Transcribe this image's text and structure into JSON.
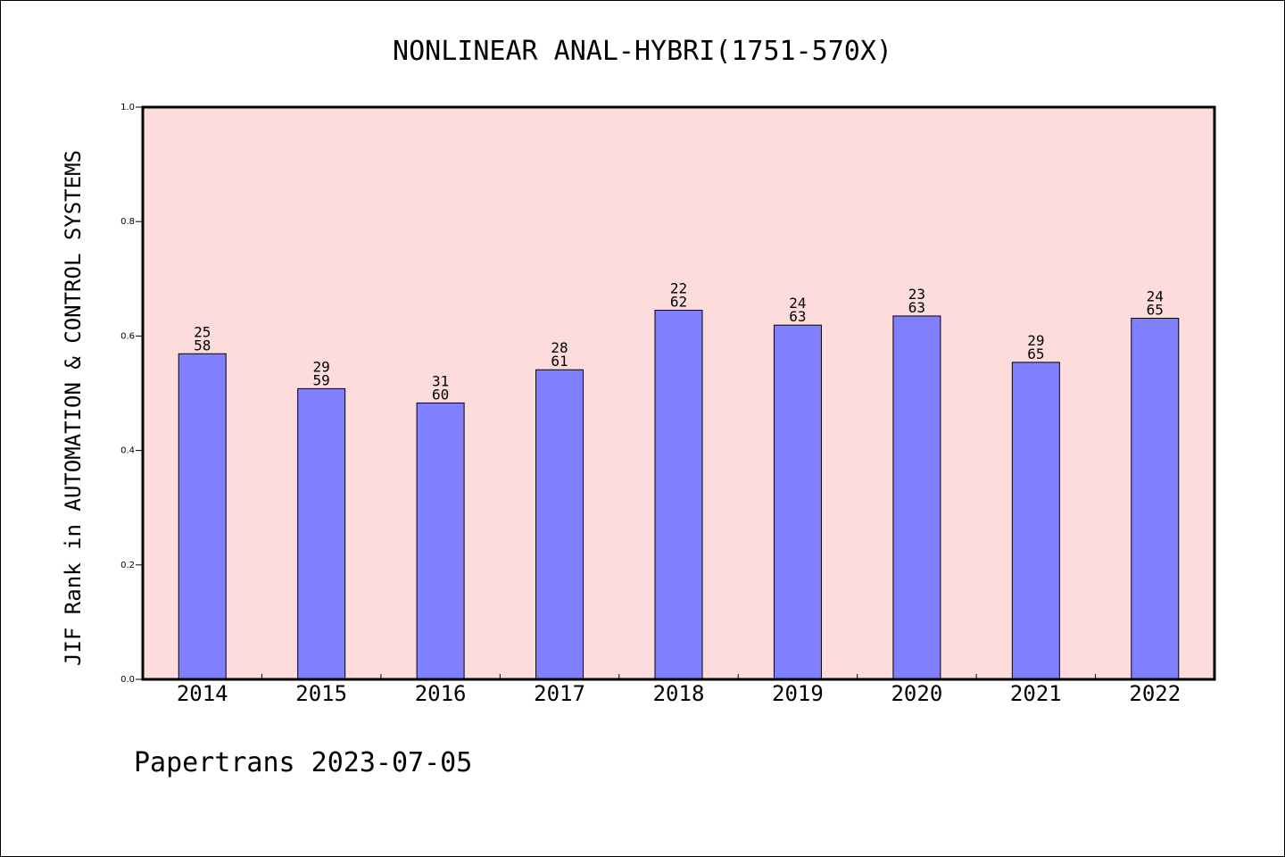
{
  "chart_data": {
    "type": "bar",
    "title": "NONLINEAR ANAL-HYBRI(1751-570X)",
    "ylabel": "JIF Rank in AUTOMATION & CONTROL SYSTEMS",
    "xlabel": "",
    "categories": [
      "2014",
      "2015",
      "2016",
      "2017",
      "2018",
      "2019",
      "2020",
      "2021",
      "2022"
    ],
    "series": [
      {
        "values": [
          0.569,
          0.508,
          0.483,
          0.541,
          0.645,
          0.619,
          0.635,
          0.554,
          0.631
        ],
        "rank": [
          "25",
          "29",
          "31",
          "28",
          "22",
          "24",
          "23",
          "29",
          "24"
        ],
        "total": [
          "58",
          "59",
          "60",
          "61",
          "62",
          "63",
          "63",
          "65",
          "65"
        ]
      }
    ],
    "ylim": [
      0,
      1.0
    ],
    "yticks": [
      "0.0",
      "0.2",
      "0.4",
      "0.6",
      "0.8",
      "1.0"
    ],
    "grid": false,
    "colors": {
      "bar": "#8080ff",
      "plot_bg": "#ffdcdc",
      "border": "#000000"
    }
  },
  "footer": {
    "text": "Papertrans 2023-07-05"
  }
}
